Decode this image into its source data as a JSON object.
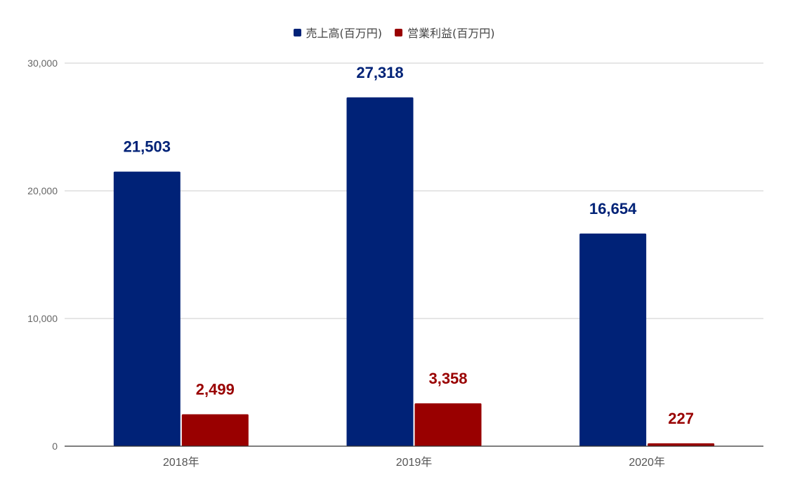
{
  "chart_data": {
    "type": "bar",
    "categories": [
      "2018年",
      "2019年",
      "2020年"
    ],
    "series": [
      {
        "name": "売上高(百万円)",
        "values": [
          21503,
          27318,
          16654
        ],
        "labels": [
          "21,503",
          "27,318",
          "16,654"
        ],
        "color": "#002277"
      },
      {
        "name": "営業利益(百万円)",
        "values": [
          2499,
          3358,
          227
        ],
        "labels": [
          "2,499",
          "3,358",
          "227"
        ],
        "color": "#990000"
      }
    ],
    "ylim": [
      0,
      30000
    ],
    "yticks": [
      0,
      10000,
      20000,
      30000
    ],
    "ytick_labels": [
      "0",
      "10,000",
      "20,000",
      "30,000"
    ],
    "grid": true,
    "legend_position": "top-center",
    "title": "",
    "xlabel": "",
    "ylabel": ""
  },
  "colors": {
    "grid": "#cccccc",
    "axis": "#333333",
    "tick_text": "#666666",
    "category_text": "#555555"
  }
}
